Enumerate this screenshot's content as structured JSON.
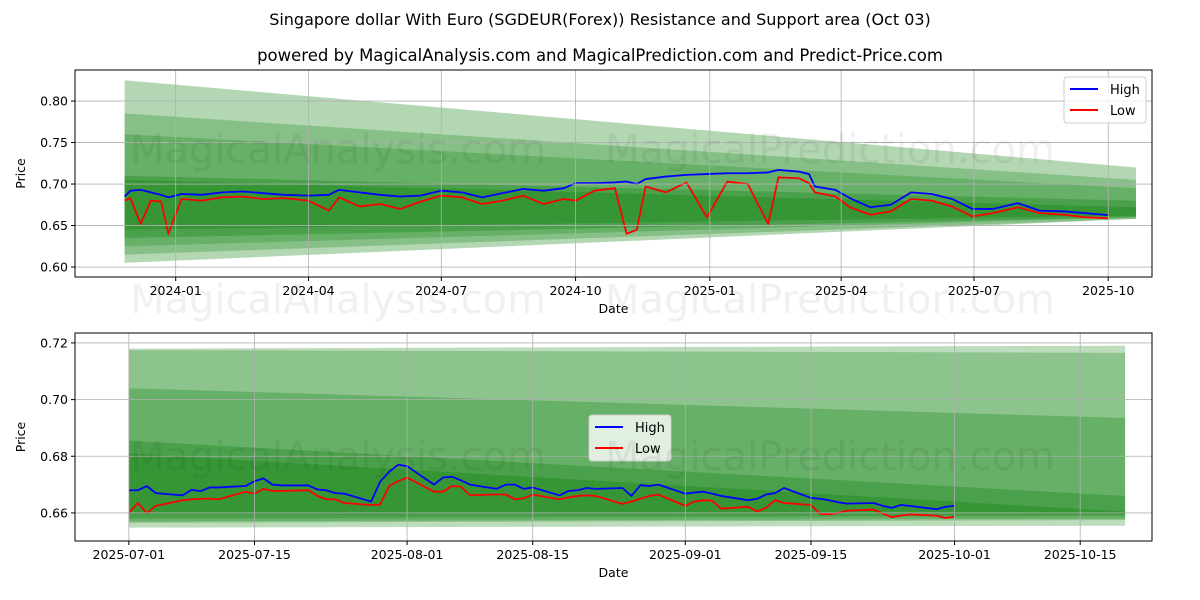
{
  "title": "Singapore dollar With Euro (SGDEUR(Forex)) Resistance and Support area (Oct 03)",
  "subtitle": "powered by MagicalAnalysis.com and MagicalPrediction.com and Predict-Price.com",
  "watermarks": [
    "MagicalAnalysis.com",
    "MagicalPrediction.com"
  ],
  "colors": {
    "high": "#0000ff",
    "low": "#ff0000",
    "band": "#228b22"
  },
  "chart_data": [
    {
      "type": "line",
      "xlabel": "Date",
      "ylabel": "Price",
      "xlim": [
        "2023-10-24",
        "2025-10-31"
      ],
      "ylim": [
        0.588,
        0.8374
      ],
      "xticks": [
        "2024-01",
        "2024-04",
        "2024-07",
        "2024-10",
        "2025-01",
        "2025-04",
        "2025-07",
        "2025-10"
      ],
      "yticks": [
        "0.60",
        "0.65",
        "0.70",
        "0.75",
        "0.80"
      ],
      "grid": true,
      "legend": {
        "placement": "top-right",
        "entries": [
          "High",
          "Low"
        ]
      },
      "bands": [
        {
          "x": [
            "2023-11-27",
            "2025-10-20"
          ],
          "upper": [
            0.825,
            0.72
          ],
          "lower": [
            0.605,
            0.658
          ],
          "opacity": 0.35
        },
        {
          "x": [
            "2023-11-27",
            "2025-10-20"
          ],
          "upper": [
            0.785,
            0.705
          ],
          "lower": [
            0.615,
            0.658
          ],
          "opacity": 0.3
        },
        {
          "x": [
            "2023-11-27",
            "2025-10-20"
          ],
          "upper": [
            0.76,
            0.695
          ],
          "lower": [
            0.625,
            0.66
          ],
          "opacity": 0.3
        },
        {
          "x": [
            "2023-11-27",
            "2025-10-20"
          ],
          "upper": [
            0.71,
            0.68
          ],
          "lower": [
            0.635,
            0.66
          ],
          "opacity": 0.4
        },
        {
          "x": [
            "2023-11-27",
            "2025-10-20"
          ],
          "upper": [
            0.705,
            0.672
          ],
          "lower": [
            0.645,
            0.662
          ],
          "opacity": 0.5
        }
      ],
      "x": [
        "2023-11-27",
        "2023-12-01",
        "2023-12-08",
        "2023-12-15",
        "2023-12-22",
        "2023-12-27",
        "2024-01-05",
        "2024-01-19",
        "2024-02-02",
        "2024-02-16",
        "2024-03-01",
        "2024-03-15",
        "2024-04-01",
        "2024-04-15",
        "2024-04-22",
        "2024-05-06",
        "2024-05-20",
        "2024-06-03",
        "2024-06-17",
        "2024-07-01",
        "2024-07-15",
        "2024-07-29",
        "2024-08-12",
        "2024-08-26",
        "2024-09-09",
        "2024-09-23",
        "2024-10-01",
        "2024-10-14",
        "2024-10-28",
        "2024-11-05",
        "2024-11-12",
        "2024-11-18",
        "2024-12-02",
        "2024-12-16",
        "2024-12-30",
        "2025-01-13",
        "2025-01-27",
        "2025-02-10",
        "2025-02-17",
        "2025-03-03",
        "2025-03-10",
        "2025-03-14",
        "2025-03-28",
        "2025-04-07",
        "2025-04-21",
        "2025-05-05",
        "2025-05-19",
        "2025-06-02",
        "2025-06-16",
        "2025-06-30",
        "2025-07-14",
        "2025-07-31",
        "2025-08-15",
        "2025-09-01",
        "2025-09-15",
        "2025-10-01"
      ],
      "series": [
        {
          "name": "High",
          "values": [
            0.685,
            0.692,
            0.693,
            0.69,
            0.687,
            0.684,
            0.688,
            0.687,
            0.69,
            0.691,
            0.689,
            0.687,
            0.686,
            0.687,
            0.693,
            0.69,
            0.687,
            0.685,
            0.686,
            0.692,
            0.69,
            0.684,
            0.689,
            0.694,
            0.692,
            0.695,
            0.701,
            0.701,
            0.702,
            0.703,
            0.7,
            0.706,
            0.709,
            0.711,
            0.712,
            0.713,
            0.713,
            0.714,
            0.717,
            0.715,
            0.712,
            0.697,
            0.693,
            0.683,
            0.672,
            0.675,
            0.69,
            0.688,
            0.682,
            0.67,
            0.67,
            0.677,
            0.668,
            0.667,
            0.665,
            0.6625
          ]
        },
        {
          "name": "Low",
          "values": [
            0.68,
            0.683,
            0.652,
            0.68,
            0.679,
            0.64,
            0.682,
            0.68,
            0.684,
            0.685,
            0.682,
            0.683,
            0.68,
            0.668,
            0.684,
            0.673,
            0.676,
            0.67,
            0.679,
            0.686,
            0.684,
            0.676,
            0.68,
            0.686,
            0.676,
            0.682,
            0.68,
            0.692,
            0.695,
            0.64,
            0.645,
            0.697,
            0.69,
            0.702,
            0.66,
            0.703,
            0.7,
            0.652,
            0.708,
            0.707,
            0.701,
            0.69,
            0.685,
            0.672,
            0.663,
            0.667,
            0.682,
            0.68,
            0.673,
            0.661,
            0.665,
            0.672,
            0.665,
            0.663,
            0.66,
            0.6587
          ]
        }
      ]
    },
    {
      "type": "line",
      "xlabel": "Date",
      "ylabel": "Price",
      "xlim": [
        "2025-06-25",
        "2025-10-23"
      ],
      "ylim": [
        0.6501,
        0.7235
      ],
      "xticks": [
        "2025-07-01",
        "2025-07-15",
        "2025-08-01",
        "2025-08-15",
        "2025-09-01",
        "2025-09-15",
        "2025-10-01",
        "2025-10-15"
      ],
      "yticks": [
        "0.66",
        "0.68",
        "0.70",
        "0.72"
      ],
      "grid": true,
      "legend": {
        "placement": "center",
        "entries": [
          "High",
          "Low"
        ]
      },
      "bands": [
        {
          "x": [
            "2025-07-01",
            "2025-10-20"
          ],
          "upper": [
            0.718,
            0.719
          ],
          "lower": [
            0.6548,
            0.6555
          ],
          "opacity": 0.3
        },
        {
          "x": [
            "2025-07-01",
            "2025-10-20"
          ],
          "upper": [
            0.7175,
            0.7165
          ],
          "lower": [
            0.6565,
            0.6575
          ],
          "opacity": 0.3
        },
        {
          "x": [
            "2025-07-01",
            "2025-10-20"
          ],
          "upper": [
            0.704,
            0.6935
          ],
          "lower": [
            0.657,
            0.658
          ],
          "opacity": 0.35
        },
        {
          "x": [
            "2025-07-01",
            "2025-10-20"
          ],
          "upper": [
            0.6855,
            0.666
          ],
          "lower": [
            0.658,
            0.659
          ],
          "opacity": 0.4
        },
        {
          "x": [
            "2025-07-01",
            "2025-10-20"
          ],
          "upper": [
            0.681,
            0.6605
          ],
          "lower": [
            0.6595,
            0.6595
          ],
          "opacity": 0.5
        }
      ],
      "x": [
        "2025-07-01",
        "2025-07-02",
        "2025-07-03",
        "2025-07-04",
        "2025-07-07",
        "2025-07-08",
        "2025-07-09",
        "2025-07-10",
        "2025-07-11",
        "2025-07-14",
        "2025-07-15",
        "2025-07-16",
        "2025-07-17",
        "2025-07-18",
        "2025-07-21",
        "2025-07-22",
        "2025-07-23",
        "2025-07-24",
        "2025-07-25",
        "2025-07-28",
        "2025-07-29",
        "2025-07-30",
        "2025-07-31",
        "2025-08-01",
        "2025-08-04",
        "2025-08-05",
        "2025-08-06",
        "2025-08-07",
        "2025-08-08",
        "2025-08-11",
        "2025-08-12",
        "2025-08-13",
        "2025-08-14",
        "2025-08-15",
        "2025-08-18",
        "2025-08-19",
        "2025-08-20",
        "2025-08-21",
        "2025-08-22",
        "2025-08-25",
        "2025-08-26",
        "2025-08-27",
        "2025-08-28",
        "2025-08-29",
        "2025-09-01",
        "2025-09-02",
        "2025-09-03",
        "2025-09-04",
        "2025-09-05",
        "2025-09-08",
        "2025-09-09",
        "2025-09-10",
        "2025-09-11",
        "2025-09-12",
        "2025-09-15",
        "2025-09-16",
        "2025-09-17",
        "2025-09-18",
        "2025-09-19",
        "2025-09-22",
        "2025-09-23",
        "2025-09-24",
        "2025-09-25",
        "2025-09-26",
        "2025-09-29",
        "2025-09-30",
        "2025-10-01"
      ],
      "series": [
        {
          "name": "High",
          "values": [
            0.668,
            0.668,
            0.6695,
            0.667,
            0.6662,
            0.6682,
            0.6677,
            0.669,
            0.669,
            0.6695,
            0.6712,
            0.6722,
            0.67,
            0.6697,
            0.6697,
            0.6683,
            0.668,
            0.667,
            0.6668,
            0.664,
            0.671,
            0.6745,
            0.677,
            0.6765,
            0.67,
            0.6725,
            0.6728,
            0.6715,
            0.67,
            0.6685,
            0.67,
            0.67,
            0.6685,
            0.669,
            0.6662,
            0.6678,
            0.668,
            0.6688,
            0.6685,
            0.6688,
            0.666,
            0.6698,
            0.6695,
            0.67,
            0.6668,
            0.6672,
            0.6675,
            0.6668,
            0.666,
            0.6645,
            0.665,
            0.6665,
            0.667,
            0.6688,
            0.6653,
            0.665,
            0.6645,
            0.6638,
            0.6633,
            0.6635,
            0.6625,
            0.6618,
            0.6628,
            0.6625,
            0.6613,
            0.6622,
            0.6625
          ]
        },
        {
          "name": "Low",
          "values": [
            0.66,
            0.6635,
            0.66,
            0.6625,
            0.6645,
            0.6648,
            0.665,
            0.665,
            0.6648,
            0.6675,
            0.6668,
            0.6685,
            0.6678,
            0.6678,
            0.668,
            0.666,
            0.6648,
            0.6648,
            0.6635,
            0.6628,
            0.663,
            0.6695,
            0.6712,
            0.6725,
            0.6675,
            0.6675,
            0.6695,
            0.6693,
            0.6663,
            0.6665,
            0.6665,
            0.6648,
            0.6652,
            0.6665,
            0.6648,
            0.6655,
            0.666,
            0.6662,
            0.666,
            0.6632,
            0.664,
            0.665,
            0.666,
            0.6665,
            0.6625,
            0.664,
            0.6645,
            0.6643,
            0.6615,
            0.6622,
            0.6605,
            0.6618,
            0.6645,
            0.6635,
            0.6628,
            0.6597,
            0.6595,
            0.66,
            0.6608,
            0.6612,
            0.6598,
            0.6585,
            0.659,
            0.6595,
            0.659,
            0.6582,
            0.6587
          ]
        }
      ]
    }
  ]
}
